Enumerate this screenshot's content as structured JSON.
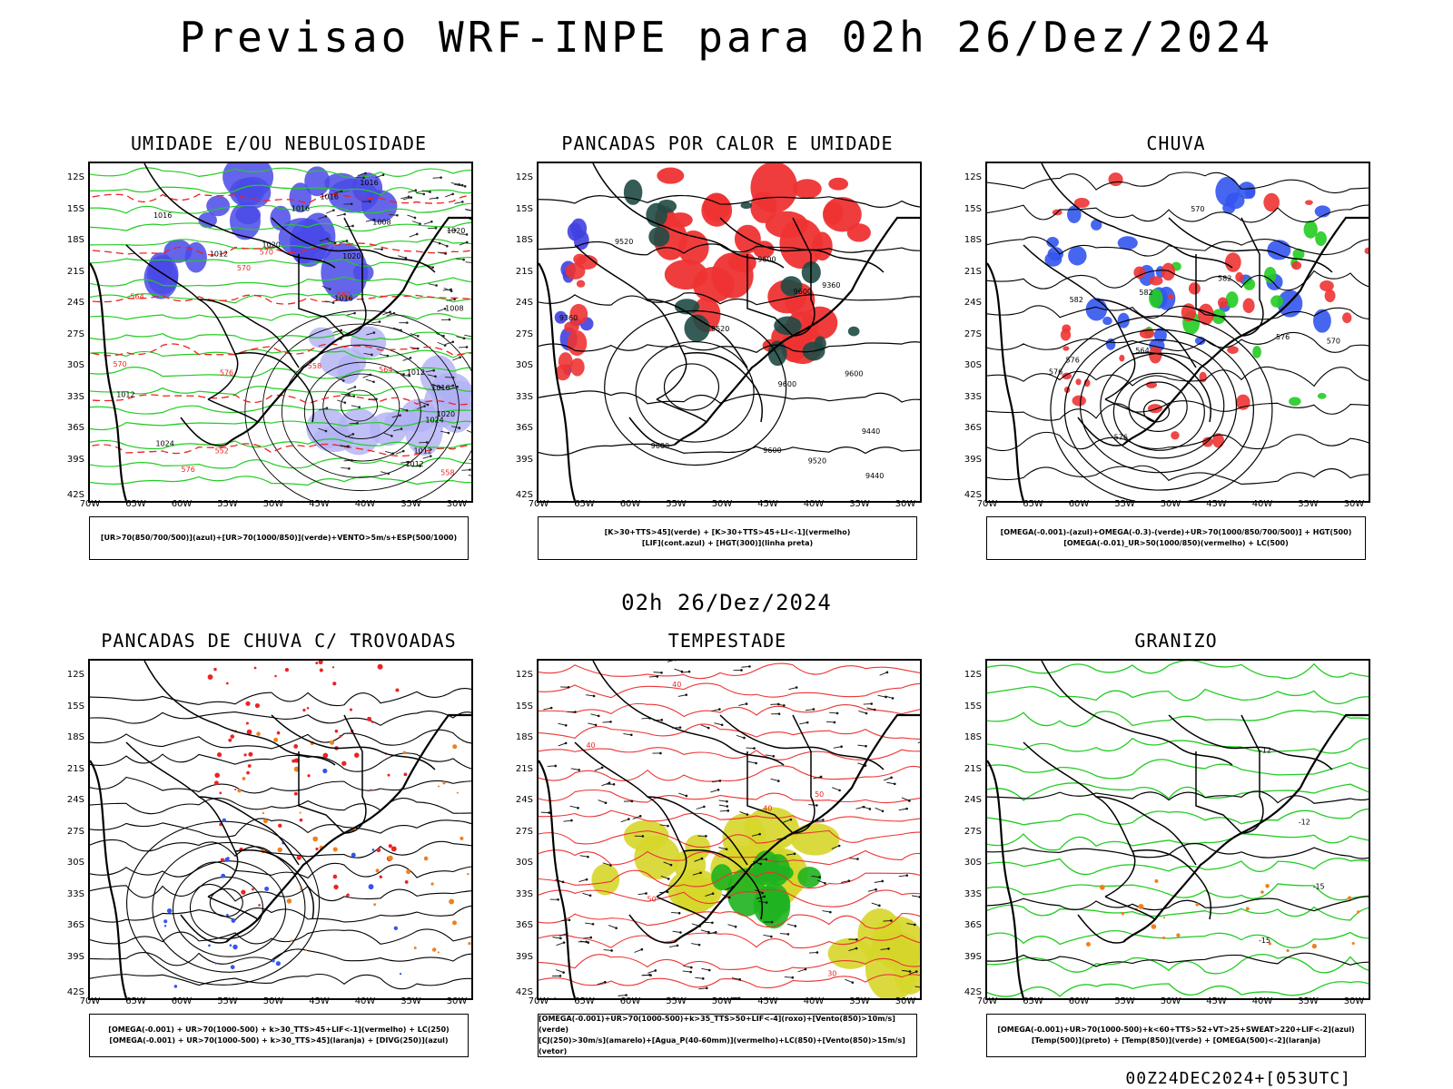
{
  "title": "Previsao WRF-INPE  para 02h 26/Dez/2024",
  "mid_title": "02h 26/Dez/2024",
  "footer": "00Z24DEC2024+[053UTC]",
  "axes": {
    "lat_labels": [
      "12S",
      "15S",
      "18S",
      "21S",
      "24S",
      "27S",
      "30S",
      "33S",
      "36S",
      "39S",
      "42S"
    ],
    "lon_labels": [
      "70W",
      "65W",
      "60W",
      "55W",
      "50W",
      "45W",
      "40W",
      "35W",
      "30W"
    ]
  },
  "panels": [
    {
      "title": "UMIDADE E/OU NEBULOSIDADE",
      "legend": [
        "[UR>70(850/700/500)](azul)+[UR>70(1000/850)](verde)+VENTO>5m/s+ESP(500/1000)"
      ],
      "contour_labels": [
        "1012",
        "1016",
        "1012",
        "1008",
        "1008",
        "1012",
        "1016",
        "1024",
        "1020",
        "1016",
        "1016",
        "1020",
        "1012",
        "1016",
        "1020",
        "1024",
        "1016",
        "1020",
        "1012",
        "570",
        "570",
        "582",
        "576",
        "564",
        "558",
        "552",
        "576",
        "570",
        "564",
        "558"
      ]
    },
    {
      "title": "PANCADAS POR CALOR E UMIDADE",
      "legend": [
        "[K>30+TTS>45](verde) + [K>30+TTS>45+LI<-1](vermelho)",
        "[LIF](cont.azul) + [HGT(300)](linha preta)"
      ],
      "contour_labels": [
        "9600",
        "9600",
        "9600",
        "9520",
        "9600",
        "9440",
        "9520",
        "9600",
        "9440",
        "9360",
        "9520",
        "9360",
        "9600"
      ]
    },
    {
      "title": "CHUVA",
      "legend": [
        "[OMEGA(-0.001)-(azul)+OMEGA(-0.3)-(verde)+UR>70(1000/850/700/500)] + HGT(500)",
        "[OMEGA(-0.01)_UR>50(1000/850)(vermelho) + LC(500)"
      ],
      "contour_labels": [
        "582",
        "576",
        "582",
        "576",
        "570",
        "576",
        "564",
        "570",
        "582",
        "576"
      ]
    },
    {
      "title": "PANCADAS DE CHUVA C/ TROVOADAS",
      "legend": [
        "[OMEGA(-0.001) + UR>70(1000-500) + k>30_TTS>45+LIF<-1](vermelho) + LC(250)",
        "[OMEGA(-0.001) + UR>70(1000-500) + k>30_TTS>45](laranja) + [DIVG(250)](azul)"
      ],
      "contour_labels": []
    },
    {
      "title": "TEMPESTADE",
      "legend": [
        "[OMEGA(-0.001)+UR>70(1000-500)+k>35_TTS>50+LIF<-4](roxo)+[Vento(850)>10m/s](verde)",
        "[CJ(250)>30m/s](amarelo)+[Agua_P(40-60mm)](vermelho)+LC(850)+[Vento(850)>15m/s](vetor)"
      ],
      "contour_labels": [
        "40",
        "50",
        "40",
        "50",
        "40",
        "30"
      ]
    },
    {
      "title": "GRANIZO",
      "legend": [
        "[OMEGA(-0.001)+UR>70(1000-500)+k<60+TTS>52+VT>25+SWEAT>220+LIF<-2](azul)",
        "[Temp(500)](preto) + [Temp(850)](verde) + [OMEGA(500)<-2](laranja)"
      ],
      "contour_labels": [
        "-12",
        "-12",
        "-15",
        "-15"
      ]
    }
  ]
}
